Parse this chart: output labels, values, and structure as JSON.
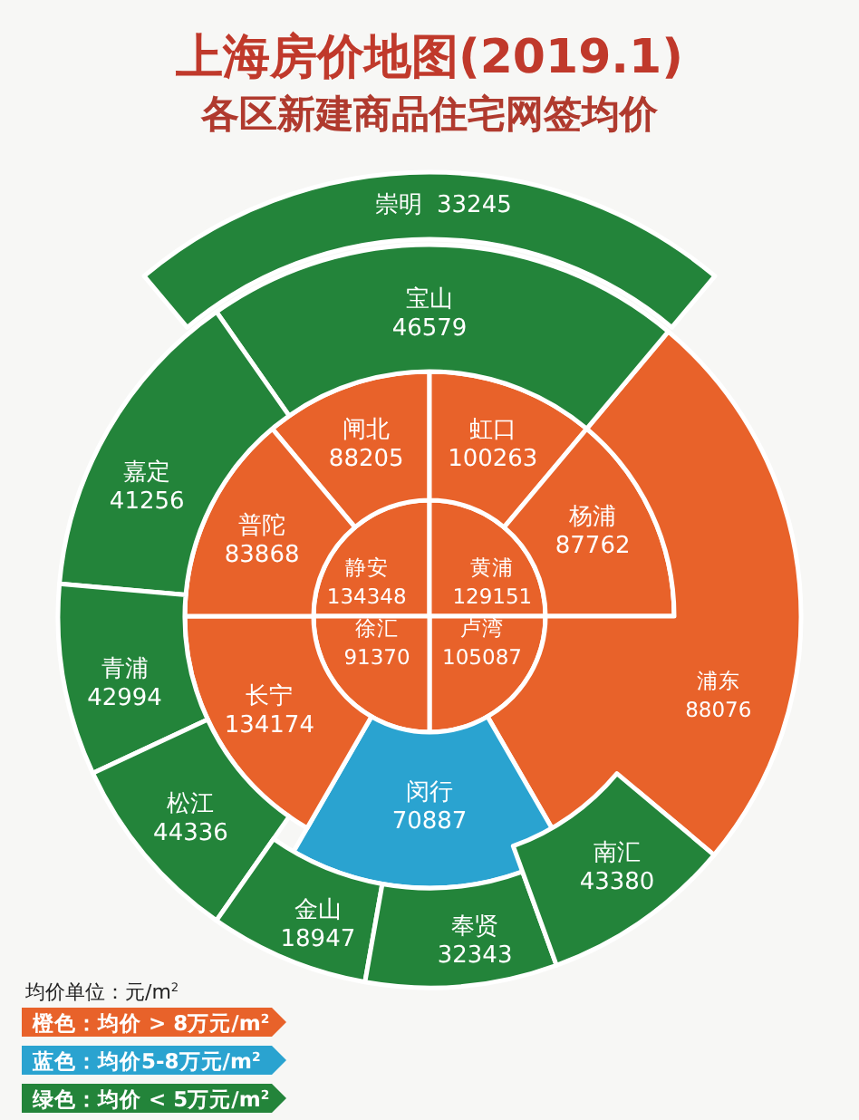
{
  "chart_data": {
    "type": "other",
    "title": "上海房价地图(2019.1)",
    "subtitle": "各区新建商品住宅网签均价",
    "categories": [
      "静安",
      "黄浦",
      "卢湾",
      "徐汇",
      "闸北",
      "虹口",
      "杨浦",
      "浦东",
      "闵行",
      "长宁",
      "普陀",
      "宝山",
      "嘉定",
      "青浦",
      "松江",
      "金山",
      "奉贤",
      "南汇",
      "崇明"
    ],
    "values": [
      134348,
      129151,
      105087,
      91370,
      88205,
      100263,
      87762,
      88076,
      70887,
      134174,
      83868,
      46579,
      41256,
      42994,
      44336,
      18947,
      32343,
      43380,
      33245
    ],
    "colors": [
      "#e8622a",
      "#e8622a",
      "#e8622a",
      "#e8622a",
      "#e8622a",
      "#e8622a",
      "#e8622a",
      "#e8622a",
      "#2aa3d0",
      "#e8622a",
      "#e8622a",
      "#23843a",
      "#23843a",
      "#23843a",
      "#23843a",
      "#23843a",
      "#23843a",
      "#23843a",
      "#23843a"
    ],
    "data_labels": true,
    "annotations": [
      "均价单位：元/m$^{2}$",
      "橙色：均价 > 8万元/m$^{2}$",
      "蓝色：均价5-8万元/m$^{2}$",
      "绿色：均价 < 5万元/m$^{2}$"
    ]
  }
}
